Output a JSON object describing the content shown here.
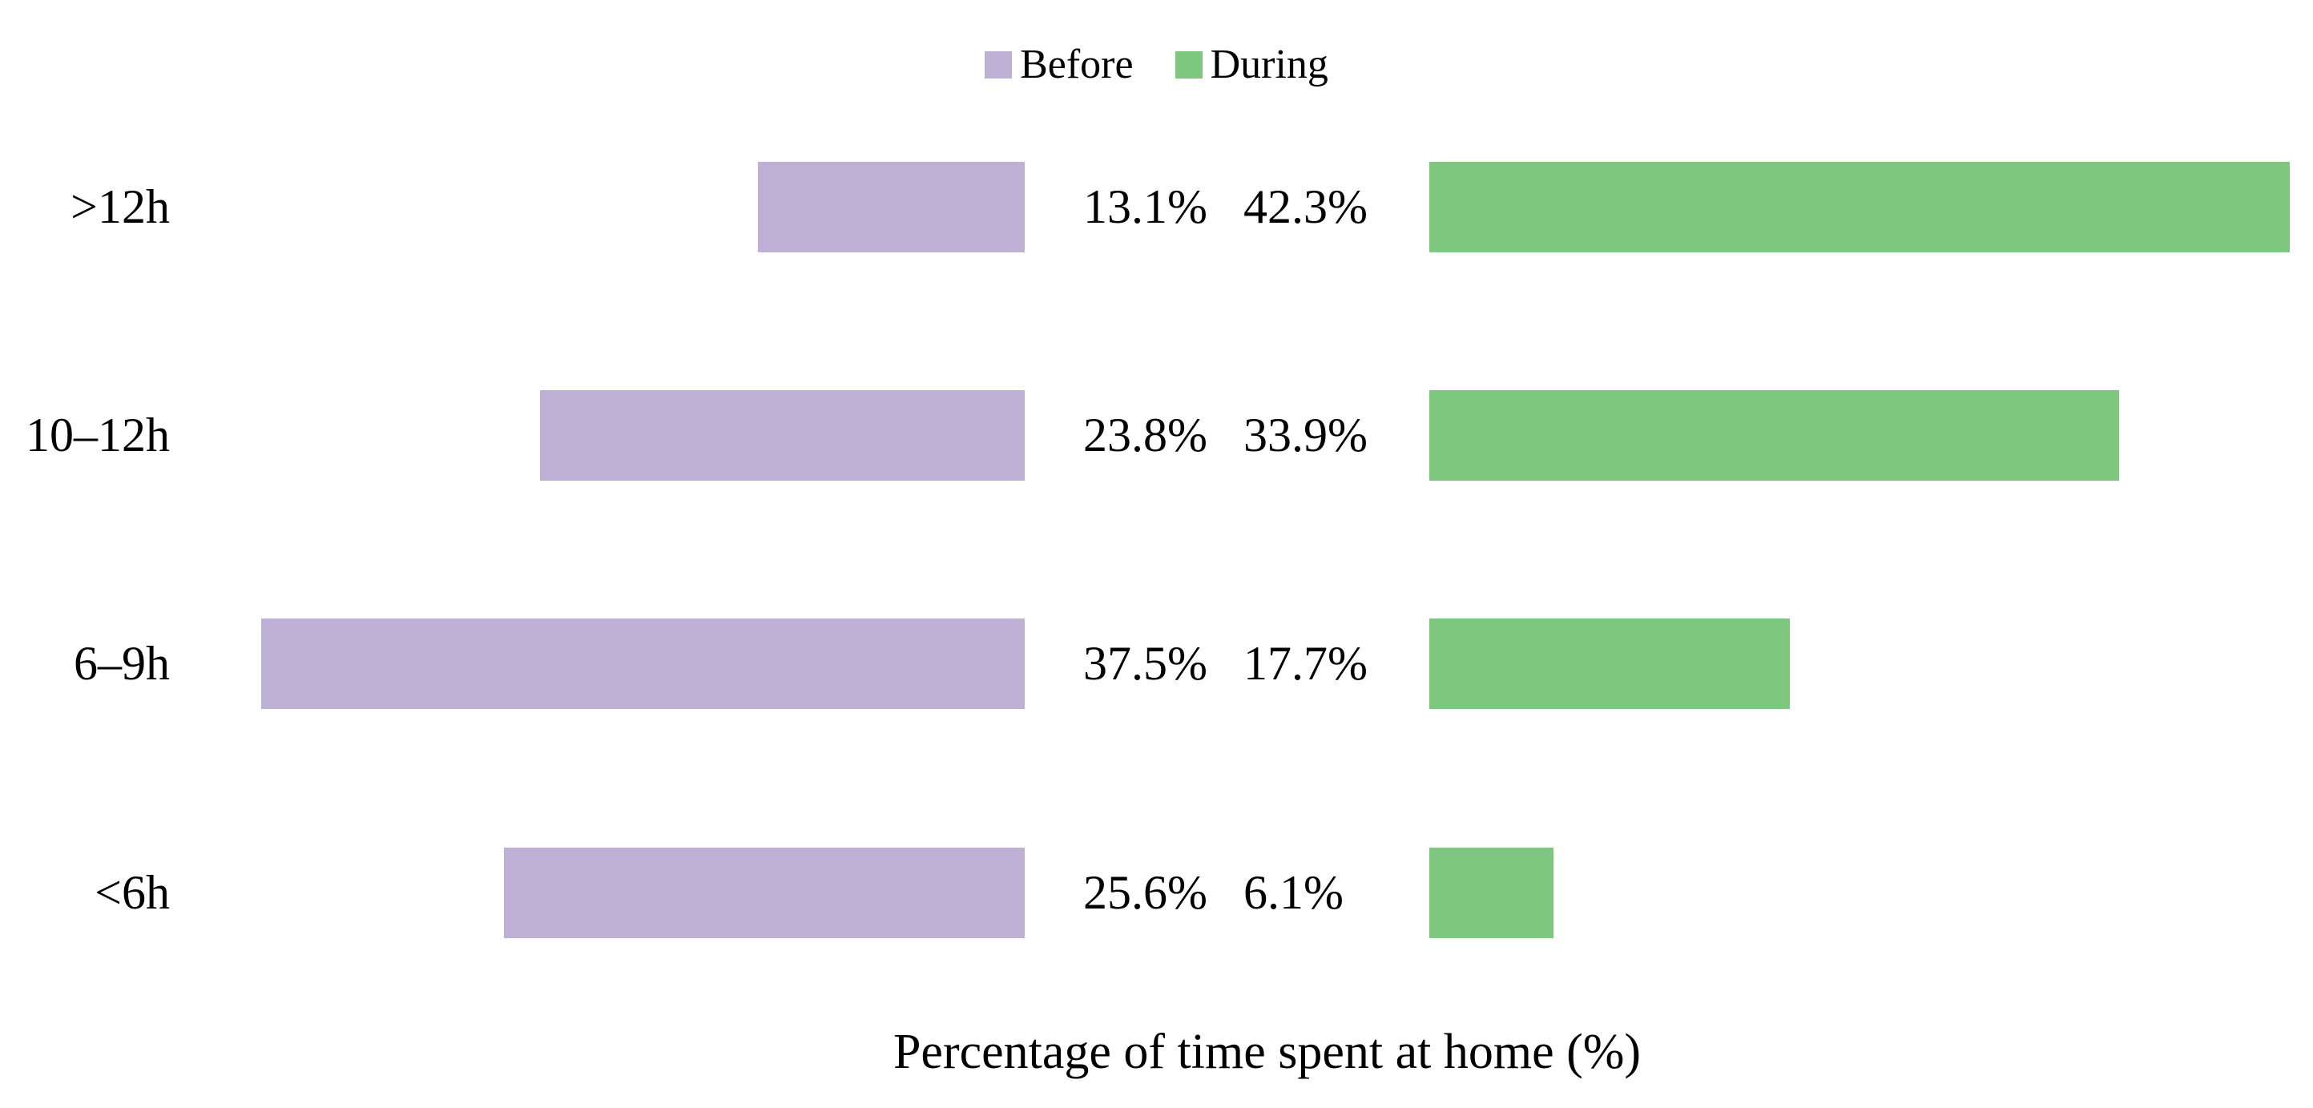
{
  "legend": {
    "items": [
      {
        "label": "Before",
        "color": "#bfb0d6"
      },
      {
        "label": "During",
        "color": "#7dc87e"
      }
    ]
  },
  "chart_data": {
    "type": "bar",
    "orientation": "horizontal",
    "variant": "diverging-butterfly",
    "title": "",
    "xlabel": "Percentage of time spent at home (%)",
    "ylabel": "",
    "categories": [
      ">12h",
      "10–12h",
      "6–9h",
      "<6h"
    ],
    "series": [
      {
        "name": "Before",
        "side": "left",
        "color": "#bfb0d6",
        "values": [
          13.1,
          23.8,
          37.5,
          25.6
        ]
      },
      {
        "name": "During",
        "side": "right",
        "color": "#7dc87e",
        "values": [
          42.3,
          33.9,
          17.7,
          6.1
        ]
      }
    ],
    "rows": [
      {
        "category": ">12h",
        "before_label": "13.1%",
        "during_label": "42.3%"
      },
      {
        "category": "10–12h",
        "before_label": "23.8%",
        "during_label": "33.9%"
      },
      {
        "category": "6–9h",
        "before_label": "37.5%",
        "during_label": "17.7%"
      },
      {
        "category": "<6h",
        "before_label": "25.6%",
        "during_label": "6.1%"
      }
    ],
    "axis_range_percent": [
      0,
      50
    ],
    "grid": false,
    "legend_position": "top-center",
    "value_labels_shown": true
  }
}
